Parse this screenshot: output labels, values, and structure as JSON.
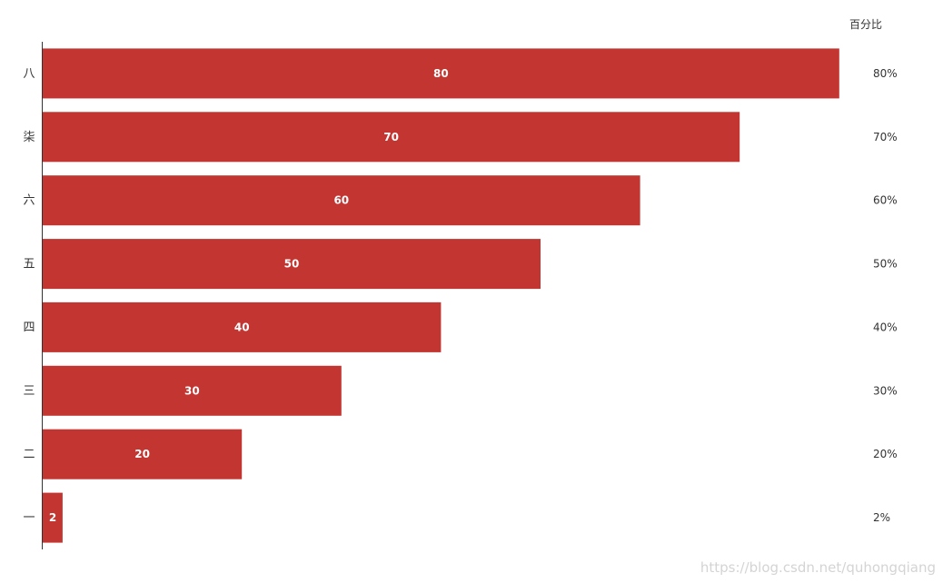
{
  "chart_data": {
    "type": "bar",
    "orientation": "horizontal",
    "categories": [
      "一",
      "二",
      "三",
      "四",
      "五",
      "六",
      "柒",
      "八"
    ],
    "series": [
      {
        "values": [
          2,
          20,
          30,
          40,
          50,
          60,
          70,
          80
        ]
      }
    ],
    "value_labels": [
      "2",
      "20",
      "30",
      "40",
      "50",
      "60",
      "70",
      "80"
    ],
    "right_axis": {
      "header": "百分比",
      "labels": [
        "2%",
        "20%",
        "30%",
        "40%",
        "50%",
        "60%",
        "70%",
        "80%"
      ]
    },
    "xlim": [
      0,
      80
    ],
    "grid": false,
    "bar_color": "#c23531",
    "title": ""
  },
  "watermark": "https://blog.csdn.net/quhongqiang"
}
